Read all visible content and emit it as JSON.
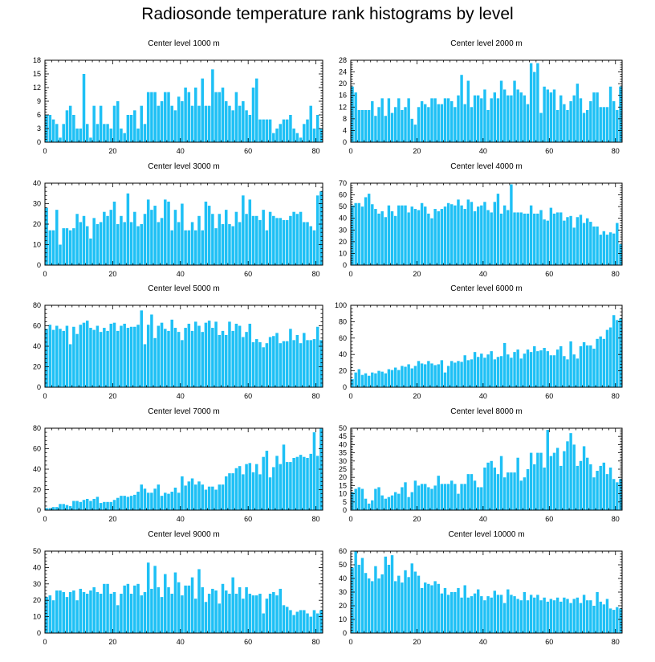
{
  "title": "Radiosonde temperature rank histograms by level",
  "bar_color": "#1ec0f5",
  "chart_data": [
    {
      "type": "bar",
      "title": "Center level 1000 m",
      "xlabel": "",
      "ylabel": "",
      "xlim": [
        0,
        82
      ],
      "ylim": [
        0,
        18
      ],
      "xticks": [
        0,
        20,
        40,
        60,
        80
      ],
      "yticks": [
        0,
        3,
        6,
        9,
        12,
        15,
        18
      ],
      "values": [
        6,
        6,
        5,
        4,
        1,
        4,
        7,
        8,
        6,
        3,
        3,
        15,
        4,
        1,
        8,
        4,
        8,
        4,
        4,
        3,
        8,
        9,
        3,
        2,
        6,
        6,
        7,
        3,
        8,
        4,
        11,
        11,
        11,
        8,
        9,
        11,
        11,
        8,
        7,
        10,
        9,
        12,
        11,
        8,
        12,
        8,
        14,
        8,
        8,
        16,
        11,
        11,
        12,
        9,
        8,
        7,
        11,
        8,
        9,
        7,
        6,
        12,
        14,
        5,
        5,
        5,
        5,
        2,
        3,
        4,
        5,
        5,
        6,
        3,
        2,
        1,
        4,
        5,
        8,
        3,
        6,
        3
      ]
    },
    {
      "type": "bar",
      "title": "Center level 2000 m",
      "xlabel": "",
      "ylabel": "",
      "xlim": [
        0,
        82
      ],
      "ylim": [
        0,
        28
      ],
      "xticks": [
        0,
        20,
        40,
        60,
        80
      ],
      "yticks": [
        0,
        4,
        8,
        12,
        16,
        20,
        24,
        28
      ],
      "values": [
        19,
        17,
        11,
        11,
        11,
        11,
        14,
        9,
        12,
        15,
        9,
        15,
        10,
        12,
        15,
        11,
        12,
        15,
        8,
        6,
        12,
        14,
        13,
        12,
        15,
        15,
        13,
        13,
        15,
        15,
        14,
        12,
        16,
        23,
        13,
        21,
        12,
        16,
        16,
        15,
        18,
        11,
        15,
        17,
        15,
        21,
        18,
        16,
        16,
        21,
        18,
        17,
        16,
        13,
        27,
        24,
        27,
        10,
        19,
        18,
        17,
        18,
        11,
        16,
        13,
        11,
        14,
        16,
        20,
        15,
        10,
        11,
        14,
        17,
        17,
        12,
        12,
        12,
        19,
        14,
        11,
        19
      ]
    },
    {
      "type": "bar",
      "title": "Center level 3000 m",
      "xlabel": "",
      "ylabel": "",
      "xlim": [
        0,
        82
      ],
      "ylim": [
        0,
        40
      ],
      "xticks": [
        0,
        20,
        40,
        60,
        80
      ],
      "yticks": [
        0,
        10,
        20,
        30,
        40
      ],
      "values": [
        28,
        17,
        17,
        27,
        10,
        18,
        18,
        17,
        18,
        25,
        21,
        24,
        19,
        13,
        23,
        20,
        21,
        26,
        24,
        27,
        31,
        20,
        24,
        21,
        35,
        21,
        26,
        19,
        20,
        25,
        32,
        27,
        29,
        21,
        23,
        32,
        31,
        17,
        27,
        21,
        30,
        17,
        17,
        21,
        17,
        24,
        17,
        31,
        29,
        25,
        18,
        25,
        20,
        27,
        20,
        19,
        26,
        21,
        34,
        25,
        32,
        24,
        24,
        22,
        27,
        17,
        26,
        24,
        23,
        23,
        22,
        22,
        24,
        26,
        25,
        26,
        21,
        21,
        19,
        17,
        34,
        36
      ]
    },
    {
      "type": "bar",
      "title": "Center level 4000 m",
      "xlabel": "",
      "ylabel": "",
      "xlim": [
        0,
        82
      ],
      "ylim": [
        0,
        70
      ],
      "xticks": [
        0,
        20,
        40,
        60,
        80
      ],
      "yticks": [
        0,
        10,
        20,
        30,
        40,
        50,
        60,
        70
      ],
      "values": [
        51,
        53,
        53,
        50,
        58,
        61,
        52,
        48,
        44,
        46,
        41,
        51,
        46,
        42,
        51,
        51,
        51,
        45,
        50,
        48,
        47,
        53,
        50,
        44,
        40,
        48,
        46,
        48,
        50,
        53,
        52,
        51,
        56,
        51,
        48,
        56,
        54,
        46,
        50,
        51,
        54,
        47,
        45,
        54,
        61,
        44,
        51,
        47,
        69,
        45,
        45,
        45,
        44,
        44,
        51,
        44,
        44,
        47,
        39,
        38,
        49,
        44,
        45,
        45,
        38,
        41,
        42,
        32,
        41,
        43,
        36,
        40,
        37,
        33,
        33,
        26,
        29,
        26,
        28,
        27,
        36,
        18
      ]
    },
    {
      "type": "bar",
      "title": "Center level 5000 m",
      "xlabel": "",
      "ylabel": "",
      "xlim": [
        0,
        82
      ],
      "ylim": [
        0,
        80
      ],
      "xticks": [
        0,
        20,
        40,
        60,
        80
      ],
      "yticks": [
        0,
        20,
        40,
        60,
        80
      ],
      "values": [
        57,
        61,
        56,
        60,
        57,
        55,
        60,
        42,
        59,
        52,
        61,
        63,
        65,
        58,
        56,
        60,
        54,
        58,
        55,
        62,
        63,
        55,
        60,
        62,
        58,
        59,
        59,
        61,
        75,
        42,
        61,
        71,
        48,
        60,
        63,
        57,
        55,
        66,
        58,
        54,
        46,
        58,
        62,
        55,
        64,
        60,
        54,
        63,
        65,
        58,
        64,
        51,
        55,
        51,
        64,
        55,
        62,
        60,
        49,
        54,
        62,
        44,
        47,
        44,
        39,
        43,
        49,
        50,
        53,
        43,
        45,
        45,
        57,
        46,
        51,
        43,
        53,
        46,
        46,
        47,
        59,
        46
      ]
    },
    {
      "type": "bar",
      "title": "Center level 6000 m",
      "xlabel": "",
      "ylabel": "",
      "xlim": [
        0,
        82
      ],
      "ylim": [
        0,
        100
      ],
      "xticks": [
        0,
        20,
        40,
        60,
        80
      ],
      "yticks": [
        0,
        20,
        40,
        60,
        80,
        100
      ],
      "values": [
        10,
        18,
        22,
        15,
        17,
        14,
        18,
        17,
        20,
        19,
        17,
        22,
        21,
        24,
        21,
        26,
        25,
        28,
        23,
        26,
        32,
        29,
        28,
        32,
        29,
        27,
        28,
        33,
        18,
        26,
        32,
        30,
        32,
        31,
        39,
        33,
        34,
        43,
        37,
        41,
        36,
        40,
        44,
        34,
        37,
        38,
        54,
        40,
        36,
        43,
        46,
        35,
        41,
        46,
        43,
        50,
        44,
        45,
        48,
        44,
        39,
        39,
        46,
        50,
        38,
        34,
        56,
        40,
        35,
        50,
        55,
        51,
        51,
        47,
        59,
        62,
        59,
        70,
        73,
        88,
        82,
        84
      ]
    },
    {
      "type": "bar",
      "title": "Center level 7000 m",
      "xlabel": "",
      "ylabel": "",
      "xlim": [
        0,
        82
      ],
      "ylim": [
        0,
        80
      ],
      "xticks": [
        0,
        20,
        40,
        60,
        80
      ],
      "yticks": [
        0,
        20,
        40,
        60,
        80
      ],
      "values": [
        2,
        2,
        3,
        3,
        6,
        6,
        5,
        4,
        9,
        9,
        8,
        10,
        11,
        9,
        11,
        13,
        7,
        8,
        8,
        8,
        10,
        12,
        14,
        14,
        13,
        14,
        15,
        18,
        25,
        21,
        17,
        17,
        21,
        25,
        14,
        17,
        16,
        18,
        22,
        17,
        33,
        24,
        28,
        31,
        25,
        28,
        25,
        20,
        23,
        23,
        20,
        25,
        25,
        33,
        36,
        36,
        41,
        43,
        35,
        45,
        46,
        37,
        45,
        35,
        52,
        58,
        32,
        42,
        53,
        45,
        64,
        47,
        47,
        51,
        52,
        54,
        52,
        51,
        55,
        76,
        53,
        80
      ]
    },
    {
      "type": "bar",
      "title": "Center level 8000 m",
      "xlabel": "",
      "ylabel": "",
      "xlim": [
        0,
        82
      ],
      "ylim": [
        0,
        50
      ],
      "xticks": [
        0,
        20,
        40,
        60,
        80
      ],
      "yticks": [
        0,
        5,
        10,
        15,
        20,
        25,
        30,
        35,
        40,
        45,
        50
      ],
      "values": [
        11,
        13,
        14,
        13,
        7,
        4,
        6,
        13,
        14,
        9,
        7,
        8,
        9,
        11,
        10,
        14,
        17,
        8,
        11,
        18,
        15,
        16,
        16,
        14,
        13,
        15,
        21,
        16,
        16,
        16,
        18,
        16,
        10,
        16,
        16,
        22,
        22,
        18,
        14,
        14,
        26,
        29,
        30,
        26,
        22,
        33,
        20,
        23,
        23,
        23,
        32,
        18,
        20,
        25,
        35,
        28,
        35,
        35,
        26,
        49,
        33,
        35,
        38,
        27,
        36,
        42,
        47,
        40,
        27,
        30,
        39,
        32,
        28,
        20,
        24,
        27,
        29,
        22,
        26,
        19,
        17,
        19
      ]
    },
    {
      "type": "bar",
      "title": "Center level 9000 m",
      "xlabel": "",
      "ylabel": "",
      "xlim": [
        0,
        82
      ],
      "ylim": [
        0,
        50
      ],
      "xticks": [
        0,
        20,
        40,
        60,
        80
      ],
      "yticks": [
        0,
        10,
        20,
        30,
        40,
        50
      ],
      "values": [
        22,
        23,
        20,
        26,
        26,
        25,
        22,
        25,
        26,
        20,
        27,
        25,
        24,
        26,
        28,
        25,
        24,
        30,
        30,
        24,
        25,
        17,
        24,
        29,
        30,
        24,
        29,
        30,
        23,
        25,
        43,
        27,
        41,
        28,
        22,
        36,
        28,
        24,
        37,
        31,
        23,
        29,
        29,
        34,
        21,
        39,
        28,
        19,
        24,
        27,
        26,
        18,
        30,
        26,
        24,
        34,
        24,
        28,
        21,
        28,
        24,
        23,
        23,
        24,
        12,
        21,
        24,
        25,
        23,
        27,
        17,
        16,
        14,
        11,
        13,
        14,
        14,
        12,
        10,
        14,
        12,
        14
      ]
    },
    {
      "type": "bar",
      "title": "Center level 10000 m",
      "xlabel": "",
      "ylabel": "",
      "xlim": [
        0,
        82
      ],
      "ylim": [
        0,
        60
      ],
      "xticks": [
        0,
        20,
        40,
        60,
        80
      ],
      "yticks": [
        0,
        10,
        20,
        30,
        40,
        50,
        60
      ],
      "values": [
        48,
        60,
        50,
        55,
        44,
        40,
        38,
        49,
        40,
        43,
        56,
        50,
        57,
        38,
        42,
        37,
        46,
        41,
        51,
        45,
        42,
        33,
        37,
        36,
        35,
        38,
        36,
        29,
        33,
        28,
        30,
        30,
        33,
        26,
        35,
        26,
        27,
        29,
        32,
        27,
        24,
        27,
        26,
        31,
        28,
        28,
        22,
        32,
        28,
        27,
        25,
        24,
        30,
        24,
        28,
        26,
        28,
        24,
        26,
        23,
        25,
        24,
        26,
        23,
        26,
        25,
        22,
        25,
        26,
        22,
        28,
        24,
        24,
        20,
        30,
        23,
        21,
        25,
        18,
        17,
        19,
        18
      ]
    }
  ]
}
